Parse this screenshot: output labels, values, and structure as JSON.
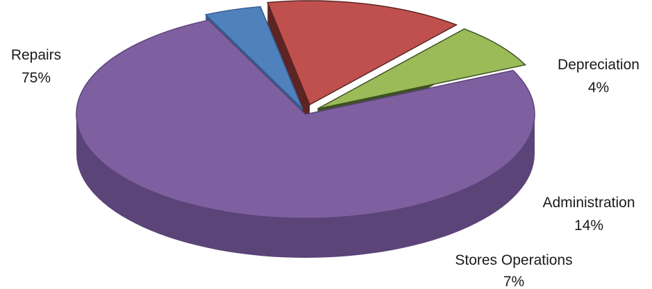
{
  "chart_data": {
    "type": "pie",
    "style": "3d-exploded",
    "title": "",
    "legend": "none",
    "slices": [
      {
        "label": "Repairs",
        "value": 75,
        "value_label": "75%",
        "color": "#7e60a0",
        "side_color": "#5b4478"
      },
      {
        "label": "Depreciation",
        "value": 4,
        "value_label": "4%",
        "color": "#4f81bd",
        "side_color": "#355c8c"
      },
      {
        "label": "Administration",
        "value": 14,
        "value_label": "14%",
        "color": "#c0504d",
        "side_color": "#5c2423"
      },
      {
        "label": "Stores Operations",
        "value": 7,
        "value_label": "7%",
        "color": "#9bbb59",
        "side_color": "#3f5124"
      }
    ]
  }
}
